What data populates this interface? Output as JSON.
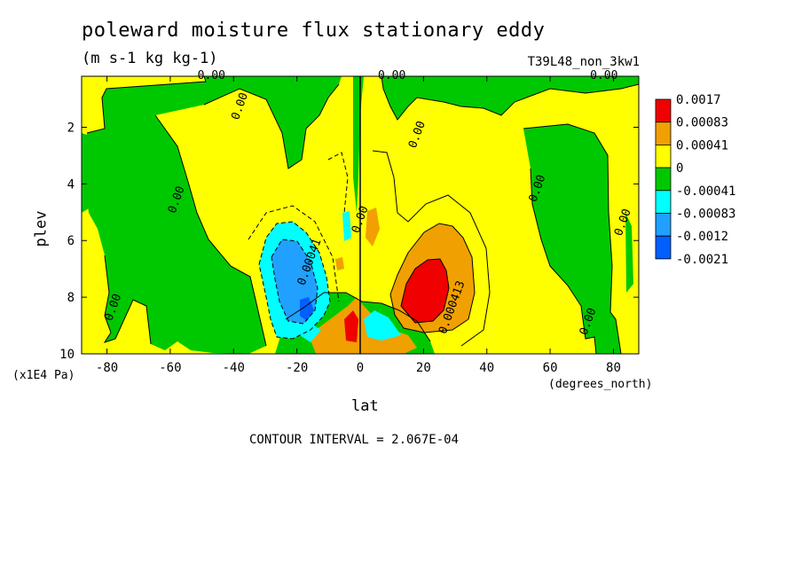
{
  "header": {
    "title": "poleward moisture flux stationary eddy",
    "units": "(m s-1 kg kg-1)",
    "run_id": "T39L48_non_3kw1"
  },
  "footer": {
    "contour_interval": "CONTOUR INTERVAL = 2.067E-04"
  },
  "colors": {
    "red": "#f00000",
    "orange": "#f0a000",
    "yellow": "#ffff00",
    "green": "#00c800",
    "cyan": "#00ffff",
    "lightblue": "#20a0ff",
    "blue": "#0060ff"
  },
  "chart_data": {
    "type": "heatmap",
    "xlabel": "lat",
    "ylabel": "plev",
    "x_unit_note": "(degrees_north)",
    "y_unit_note": "(x1E4 Pa)",
    "xlim": [
      -88,
      88
    ],
    "ylim": [
      0.2,
      10
    ],
    "y_inverted": true,
    "x_ticks": [
      -80,
      -60,
      -40,
      -20,
      0,
      20,
      40,
      60,
      80
    ],
    "y_ticks": [
      2,
      4,
      6,
      8,
      10
    ],
    "legend": {
      "position": "right",
      "labels": [
        "0.0017",
        "0.00083",
        "0.00041",
        "0",
        "-0.00041",
        "-0.00083",
        "-0.0012",
        "-0.0021"
      ],
      "colors": [
        "#f00000",
        "#f0a000",
        "#ffff00",
        "#00c800",
        "#00ffff",
        "#20a0ff",
        "#0060ff"
      ]
    },
    "contour_labels": [
      {
        "text": "0.00",
        "lat": -47,
        "plev": 0.3
      },
      {
        "text": "0.00",
        "lat": 10,
        "plev": 0.3
      },
      {
        "text": "0.00",
        "lat": 77,
        "plev": 0.3
      },
      {
        "text": "0.00",
        "lat": -37,
        "plev": 1.3
      },
      {
        "text": "0.00",
        "lat": 19,
        "plev": 2.3
      },
      {
        "text": "0.00",
        "lat": -57,
        "plev": 4.6
      },
      {
        "text": "0.00",
        "lat": 57,
        "plev": 4.2
      },
      {
        "text": "0.00",
        "lat": 84,
        "plev": 5.4
      },
      {
        "text": "0.00",
        "lat": 1,
        "plev": 5.3
      },
      {
        "text": "0.00041",
        "lat": -15,
        "plev": 6.8
      },
      {
        "text": "0.000413",
        "lat": 30,
        "plev": 8.4
      },
      {
        "text": "0.00",
        "lat": -77,
        "plev": 8.4
      },
      {
        "text": "0.00",
        "lat": 73,
        "plev": 8.9
      }
    ]
  }
}
